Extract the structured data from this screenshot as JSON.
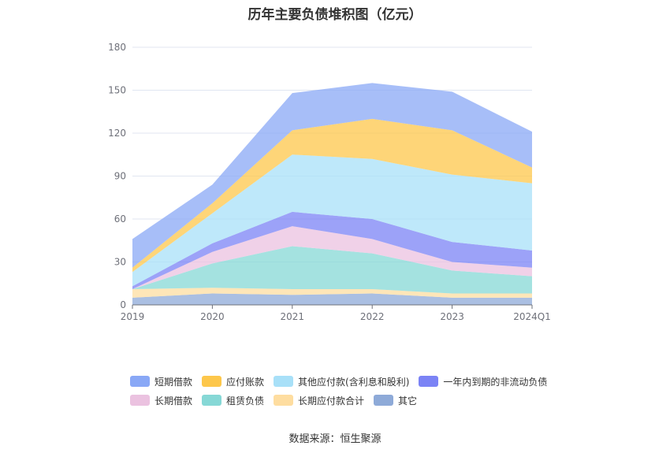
{
  "chart_data": {
    "type": "area",
    "stacked": true,
    "title": "历年主要负债堆积图（亿元）",
    "categories": [
      "2019",
      "2020",
      "2021",
      "2022",
      "2023",
      "2024Q1"
    ],
    "ylim": [
      0,
      180
    ],
    "yticks": [
      0,
      30,
      60,
      90,
      120,
      150,
      180
    ],
    "grid": true,
    "legend_position": "bottom",
    "series": [
      {
        "name": "其它",
        "color": "#8eaad8",
        "values": [
          5,
          8,
          7,
          8,
          5,
          5
        ]
      },
      {
        "name": "长期应付款合计",
        "color": "#fedda0",
        "values": [
          6,
          4,
          4,
          3,
          3,
          3
        ]
      },
      {
        "name": "租赁负债",
        "color": "#86d8d6",
        "values": [
          0,
          17,
          30,
          25,
          16,
          12
        ]
      },
      {
        "name": "长期借款",
        "color": "#ebc2e0",
        "values": [
          0,
          8,
          14,
          10,
          6,
          6
        ]
      },
      {
        "name": "一年内到期的非流动负债",
        "color": "#7b83f5",
        "values": [
          2,
          6,
          10,
          14,
          14,
          12
        ]
      },
      {
        "name": "其他应付款(含利息和股利)",
        "color": "#a8e0f8",
        "values": [
          10,
          21,
          40,
          42,
          47,
          47
        ]
      },
      {
        "name": "应付账款",
        "color": "#fdc74b",
        "values": [
          3,
          7,
          17,
          28,
          31,
          11
        ]
      },
      {
        "name": "短期借款",
        "color": "#89a8f6",
        "values": [
          20,
          13,
          26,
          25,
          27,
          25
        ]
      }
    ]
  },
  "legend": [
    {
      "label": "短期借款",
      "color": "#89a8f6"
    },
    {
      "label": "应付账款",
      "color": "#fdc74b"
    },
    {
      "label": "其他应付款(含利息和股利)",
      "color": "#a8e0f8"
    },
    {
      "label": "一年内到期的非流动负债",
      "color": "#7b83f5"
    },
    {
      "label": "长期借款",
      "color": "#ebc2e0"
    },
    {
      "label": "租赁负债",
      "color": "#86d8d6"
    },
    {
      "label": "长期应付款合计",
      "color": "#fedda0"
    },
    {
      "label": "其它",
      "color": "#8eaad8"
    }
  ],
  "source": "数据来源：恒生聚源"
}
